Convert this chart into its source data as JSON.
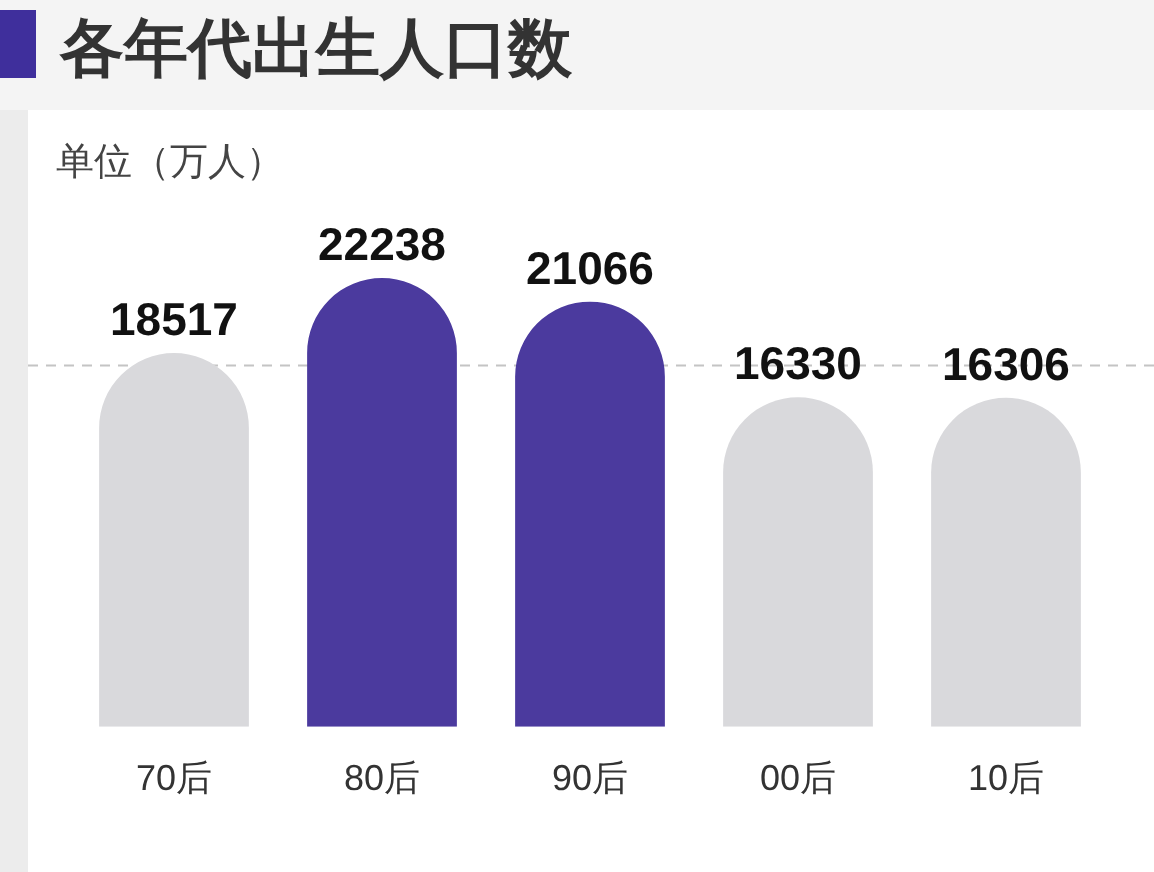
{
  "chart_data": {
    "type": "bar",
    "title": "各年代出生人口数",
    "ylabel": "单位（万人）",
    "categories": [
      "70后",
      "80后",
      "90后",
      "00后",
      "10后"
    ],
    "values": [
      18517,
      22238,
      21066,
      16330,
      16306
    ],
    "colors": [
      "#d9d9dc",
      "#4b3a9e",
      "#4b3a9e",
      "#d9d9dc",
      "#d9d9dc"
    ],
    "data_labels": true,
    "ref_lines": [
      {
        "axis": "y",
        "value": 17900,
        "color": "#c4c4c4",
        "line_style": "dashed"
      }
    ]
  }
}
